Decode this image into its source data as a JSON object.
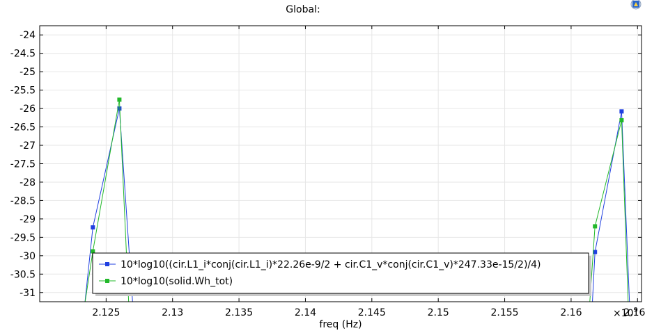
{
  "chart_data": {
    "type": "line",
    "title": "Global:",
    "xlabel": "freq (Hz)",
    "ylabel": "",
    "x_multiplier_label": "×10",
    "x_multiplier_exp": "9",
    "xlim": [
      2.12,
      2.1653
    ],
    "ylim": [
      -31.25,
      -23.75
    ],
    "x_ticks": [
      2.125,
      2.13,
      2.135,
      2.14,
      2.145,
      2.15,
      2.155,
      2.16,
      2.165
    ],
    "x_tick_labels": [
      "2.125",
      "2.13",
      "2.135",
      "2.14",
      "2.145",
      "2.15",
      "2.155",
      "2.16",
      "2.165"
    ],
    "y_ticks": [
      -24,
      -24.5,
      -25,
      -25.5,
      -26,
      -26.5,
      -27,
      -27.5,
      -28,
      -28.5,
      -29,
      -29.5,
      -30,
      -30.5,
      -31
    ],
    "y_tick_labels": [
      "-24",
      "-24.5",
      "-25",
      "-25.5",
      "-26",
      "-26.5",
      "-27",
      "-27.5",
      "-28",
      "-28.5",
      "-29",
      "-29.5",
      "-30",
      "-30.5",
      "-31"
    ],
    "grid": true,
    "legend_position": "bottom-center",
    "series": [
      {
        "name": "10*log10((cir.L1_i*conj(cir.L1_i)*22.26e-9/2 + cir.C1_v*conj(cir.C1_v)*247.33e-15/2)/4)",
        "color": "#1f3fe0",
        "x": [
          2.1234,
          2.124,
          2.126,
          2.127,
          2.1616,
          2.1618,
          2.1638,
          2.1644
        ],
        "y": [
          -31.3,
          -29.23,
          -26.0,
          -31.3,
          -31.3,
          -29.9,
          -26.08,
          -31.3
        ],
        "markers": [
          false,
          true,
          true,
          false,
          false,
          true,
          true,
          false
        ]
      },
      {
        "name": "10*log10(solid.Wh_tot)",
        "color": "#22b82a",
        "x": [
          2.1234,
          2.124,
          2.126,
          2.1267,
          2.1614,
          2.1618,
          2.1638,
          2.1643
        ],
        "y": [
          -31.3,
          -29.88,
          -25.76,
          -31.3,
          -31.3,
          -29.2,
          -26.32,
          -31.3
        ],
        "markers": [
          false,
          true,
          true,
          false,
          false,
          true,
          true,
          false
        ]
      }
    ]
  }
}
